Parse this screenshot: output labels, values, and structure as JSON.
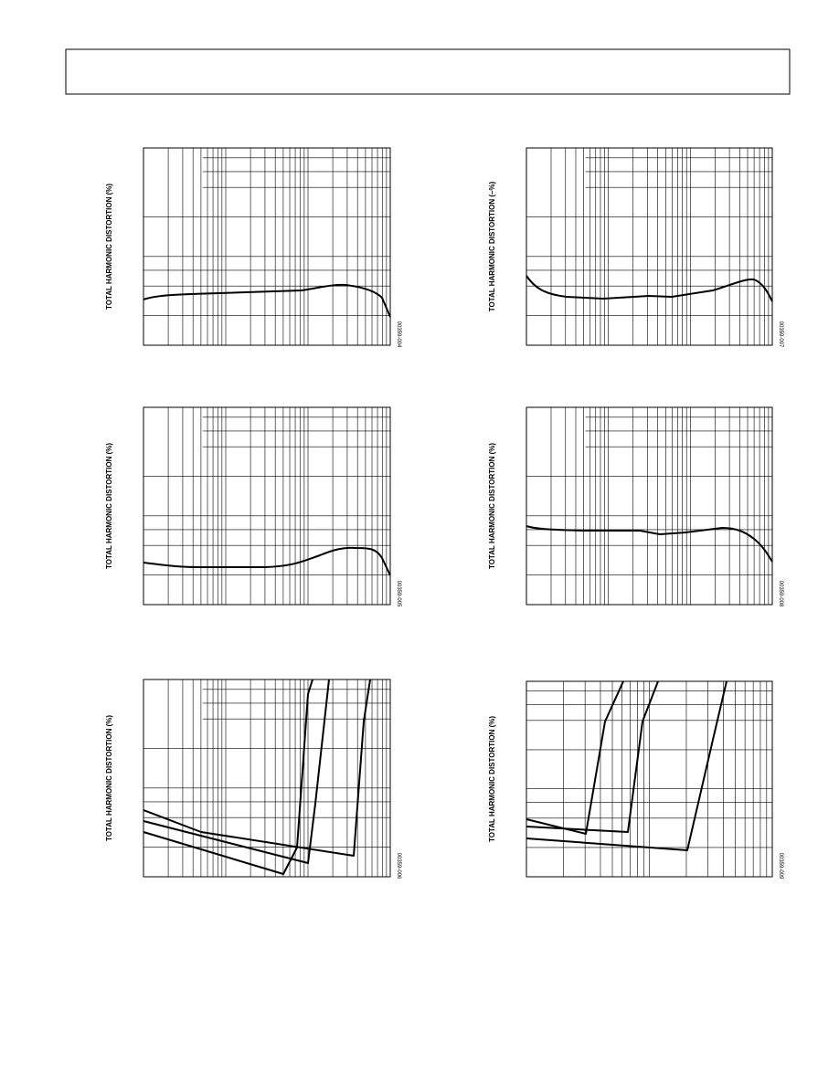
{
  "charts": [
    {
      "y_label": "TOTAL HARMONIC DISTORTION (%)",
      "figure_id": "00359-004"
    },
    {
      "y_label": "TOTAL HARMONIC DISTORTION (–%)",
      "figure_id": "00359-007"
    },
    {
      "y_label": "TOTAL HARMONIC DISTORTION (%)",
      "figure_id": "00359-005"
    },
    {
      "y_label": "TOTAL HARMONIC DISTORTION (%)",
      "figure_id": "00359-008"
    },
    {
      "y_label": "TOTAL HARMONIC DISTORTION (%)",
      "figure_id": "00359-006"
    },
    {
      "y_label": "TOTAL HARMONIC DISTORTION (%)",
      "figure_id": "00359-009"
    }
  ]
}
